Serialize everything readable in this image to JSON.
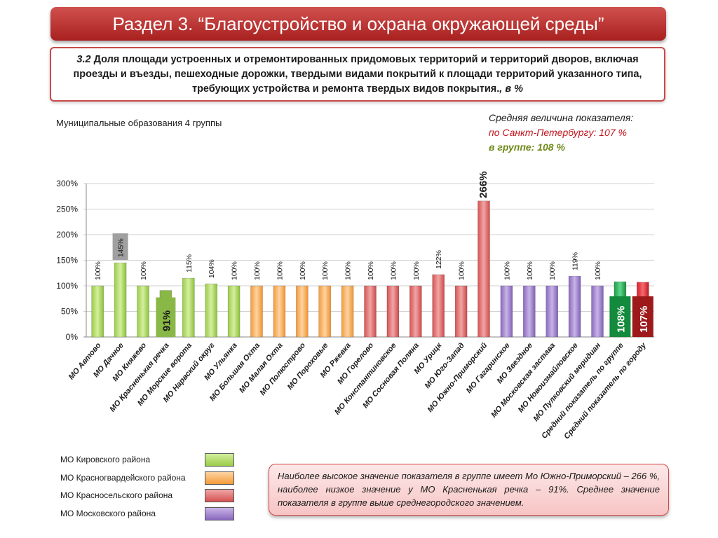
{
  "title": "Раздел 3. “Благоустройство и охрана окружающей среды”",
  "description": {
    "number": "3.2",
    "text": "Доля площади устроенных и отремонтированных придомовых территорий и территорий дворов, включая проезды и въезды, пешеходные дорожки, твердыми видами покрытий к площади территорий указанного типа, требующих устройства и ремонта твердых видов покрытия.",
    "unit": ", в %"
  },
  "subtitle": "Муниципальные образования 4 группы",
  "average": {
    "heading": "Средняя величина показателя:",
    "spb": "по Санкт-Петербургу:  107 %",
    "group": "в группе:  108 %"
  },
  "colors": {
    "kirovsky": "#b9df6e",
    "krasnogvardeisky": "#f9b86a",
    "krasnoselsky": "#e07a7a",
    "moskovsky": "#a98ccf",
    "min": "#8ab846",
    "max": "#c9504f",
    "avg_group": "#1fa14a",
    "avg_city": "#d8202a"
  },
  "chart_data": {
    "type": "bar",
    "ylim": [
      0,
      300
    ],
    "yticks": [
      "0%",
      "50%",
      "100%",
      "150%",
      "200%",
      "250%",
      "300%"
    ],
    "categories": [
      "МО Автово",
      "МО Дачное",
      "МО Княжево",
      "МО Красненькая речка",
      "МО Морские ворота",
      "МО Нарвский округ",
      "МО Ульянка",
      "МО Большая Охта",
      "МО Малая Охта",
      "МО Полюстрово",
      "МО Пороховые",
      "МО Ржевка",
      "МО Горелово",
      "МО Константиновское",
      "МО Сосновая Поляна",
      "МО Урицк",
      "МО Юго-Запад",
      "МО Южно-Приморский",
      "МО Гагаринское",
      "МО Звездное",
      "МО Московская застава",
      "МО Новоизмайловское",
      "МО Пулковский меридиан",
      "Средний показатель по группе",
      "Средний показатель по городу"
    ],
    "values": [
      100,
      145,
      100,
      91,
      115,
      104,
      100,
      100,
      100,
      100,
      100,
      100,
      100,
      100,
      100,
      122,
      100,
      266,
      100,
      100,
      100,
      119,
      100,
      108,
      107
    ],
    "labels": [
      "100%",
      "145%",
      "100%",
      "91%",
      "115%",
      "104%",
      "100%",
      "100%",
      "100%",
      "100%",
      "100%",
      "100%",
      "100%",
      "100%",
      "100%",
      "122%",
      "100%",
      "266%",
      "100%",
      "100%",
      "100%",
      "119%",
      "100%",
      "108%",
      "107%"
    ],
    "groups": [
      "kirovsky",
      "kirovsky",
      "kirovsky",
      "kirovsky",
      "kirovsky",
      "kirovsky",
      "kirovsky",
      "krasnogvardeisky",
      "krasnogvardeisky",
      "krasnogvardeisky",
      "krasnogvardeisky",
      "krasnogvardeisky",
      "krasnoselsky",
      "krasnoselsky",
      "krasnoselsky",
      "krasnoselsky",
      "krasnoselsky",
      "krasnoselsky",
      "moskovsky",
      "moskovsky",
      "moskovsky",
      "moskovsky",
      "moskovsky",
      "avg_group",
      "avg_city"
    ],
    "grid": true
  },
  "legend": [
    {
      "label": "МО Кировского района",
      "color": "#b9df6e"
    },
    {
      "label": "МО Красногвардейского района",
      "color": "#f9b86a"
    },
    {
      "label": "МО Красносельского района",
      "color": "#e07a7a"
    },
    {
      "label": "МО Московского района",
      "color": "#a98ccf"
    }
  ],
  "note": "Наиболее высокое значение показателя в группе имеет  Мо Южно-Приморский – 266 %, наиболее низкое значение у МО Красненькая речка – 91%. Среднее значение показателя в группе выше среднегородского значением."
}
